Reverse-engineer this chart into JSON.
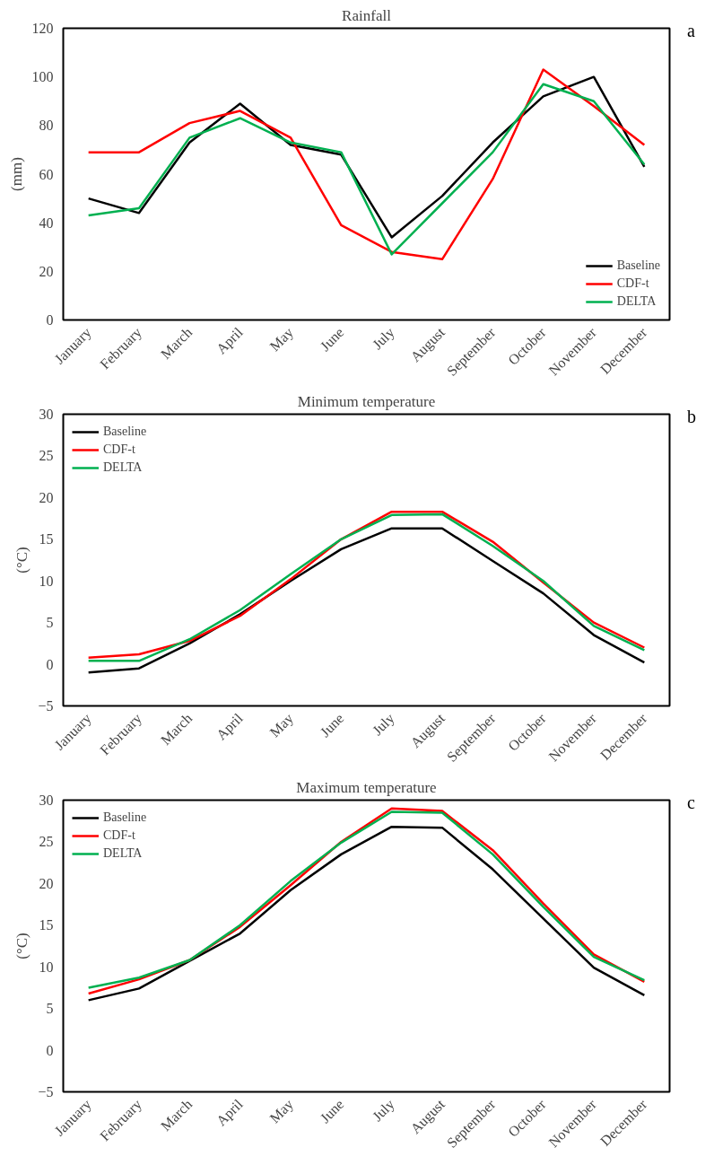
{
  "chart_data": [
    {
      "type": "line",
      "title": "Rainfall",
      "ylabel": "(mm)",
      "annotations": [
        "a"
      ],
      "categories": [
        "January",
        "February",
        "March",
        "April",
        "May",
        "June",
        "July",
        "August",
        "September",
        "October",
        "November",
        "December"
      ],
      "series": [
        {
          "name": "Baseline",
          "color": "#000000",
          "values": [
            50,
            44,
            73,
            89,
            72,
            68,
            34,
            51,
            73,
            92,
            100,
            63
          ]
        },
        {
          "name": "CDF-t",
          "color": "#ff0000",
          "values": [
            69,
            69,
            81,
            86,
            75,
            39,
            28,
            25,
            58,
            103,
            88,
            72
          ]
        },
        {
          "name": "DELTA",
          "color": "#00b050",
          "values": [
            43,
            46,
            75,
            83,
            73,
            69,
            27,
            48,
            69,
            97,
            90,
            64
          ]
        }
      ],
      "ylim": [
        0,
        120
      ],
      "yticks": [
        0,
        20,
        40,
        60,
        80,
        100,
        120
      ],
      "grid": false,
      "legend": "bottom right",
      "marker": "none",
      "line_style": "solid"
    },
    {
      "type": "line",
      "title": "Minimum temperature",
      "ylabel": "(°C)",
      "annotations": [
        "b"
      ],
      "categories": [
        "January",
        "February",
        "March",
        "April",
        "May",
        "June",
        "July",
        "August",
        "September",
        "October",
        "November",
        "December"
      ],
      "series": [
        {
          "name": "Baseline",
          "color": "#000000",
          "values": [
            -1,
            -0.5,
            2.5,
            6,
            10,
            13.8,
            16.3,
            16.3,
            12.4,
            8.5,
            3.5,
            0.2
          ]
        },
        {
          "name": "CDF-t",
          "color": "#ff0000",
          "values": [
            0.8,
            1.2,
            2.8,
            5.8,
            10.2,
            15,
            18.3,
            18.3,
            14.7,
            9.8,
            5,
            2
          ]
        },
        {
          "name": "DELTA",
          "color": "#00b050",
          "values": [
            0.4,
            0.4,
            3,
            6.5,
            10.8,
            15,
            17.9,
            18,
            14.2,
            10,
            4.6,
            1.7
          ]
        }
      ],
      "ylim": [
        -5,
        30
      ],
      "yticks": [
        -5,
        0,
        5,
        10,
        15,
        20,
        25,
        30
      ],
      "grid": false,
      "legend": "top left",
      "marker": "none",
      "line_style": "solid"
    },
    {
      "type": "line",
      "title": "Maximum temperature",
      "ylabel": "(°C)",
      "annotations": [
        "c"
      ],
      "categories": [
        "January",
        "February",
        "March",
        "April",
        "May",
        "June",
        "July",
        "August",
        "September",
        "October",
        "November",
        "December"
      ],
      "series": [
        {
          "name": "Baseline",
          "color": "#000000",
          "values": [
            6,
            7.4,
            10.7,
            14,
            19.2,
            23.5,
            26.8,
            26.7,
            21.7,
            15.8,
            9.9,
            6.6
          ]
        },
        {
          "name": "CDF-t",
          "color": "#ff0000",
          "values": [
            6.8,
            8.5,
            10.8,
            14.8,
            19.8,
            25,
            29,
            28.7,
            24,
            17.6,
            11.5,
            8.2
          ]
        },
        {
          "name": "DELTA",
          "color": "#00b050",
          "values": [
            7.5,
            8.7,
            10.8,
            15,
            20.3,
            24.9,
            28.6,
            28.5,
            23.5,
            17.2,
            11.2,
            8.4
          ]
        }
      ],
      "ylim": [
        -5,
        30
      ],
      "yticks": [
        -5,
        0,
        5,
        10,
        15,
        20,
        25,
        30
      ],
      "grid": false,
      "legend": "top left",
      "marker": "none",
      "line_style": "solid"
    }
  ]
}
